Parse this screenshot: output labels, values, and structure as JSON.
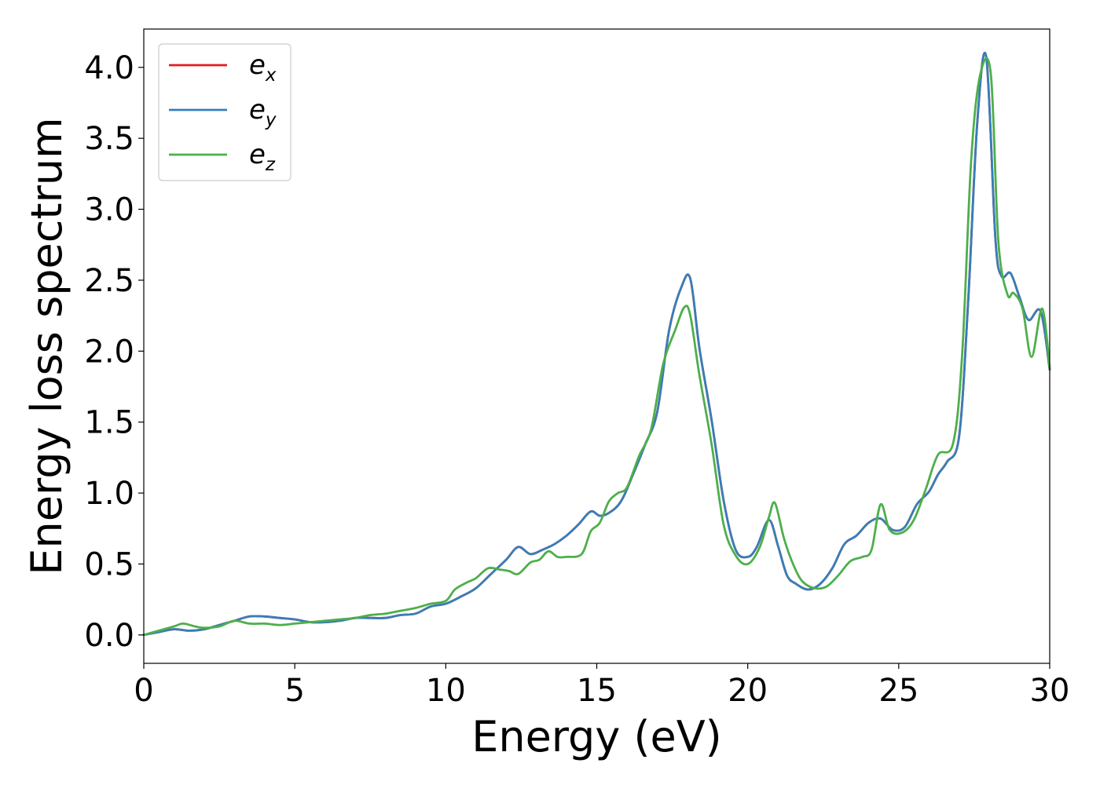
{
  "chart_data": {
    "type": "line",
    "xlabel": "Energy (eV)",
    "ylabel": "Energy loss spectrum",
    "xlim": [
      0,
      30
    ],
    "ylim": [
      -0.2,
      4.27
    ],
    "xticks": [
      0,
      5,
      10,
      15,
      20,
      25,
      30
    ],
    "yticks": [
      0.0,
      0.5,
      1.0,
      1.5,
      2.0,
      2.5,
      3.0,
      3.5,
      4.0
    ],
    "xtick_labels": [
      "0",
      "5",
      "10",
      "15",
      "20",
      "25",
      "30"
    ],
    "ytick_labels": [
      "0.0",
      "0.5",
      "1.0",
      "1.5",
      "2.0",
      "2.5",
      "3.0",
      "3.5",
      "4.0"
    ],
    "grid": false,
    "legend_position": "top-left",
    "series": [
      {
        "name": "e_x",
        "legend_base": "e",
        "legend_sub": "x",
        "color": "#e41a1c",
        "x": [
          0,
          0.5,
          1,
          1.5,
          2,
          2.5,
          3,
          3.5,
          4,
          4.5,
          5,
          5.5,
          6,
          6.5,
          7,
          7.5,
          8,
          8.5,
          9,
          9.5,
          10,
          10.5,
          11,
          11.5,
          12,
          12.4,
          12.8,
          13.2,
          13.6,
          14,
          14.4,
          14.8,
          15.1,
          15.4,
          15.8,
          16.2,
          16.6,
          17,
          17.4,
          17.8,
          18.1,
          18.4,
          18.8,
          19.2,
          19.6,
          20,
          20.3,
          20.7,
          21,
          21.3,
          21.6,
          22,
          22.4,
          22.8,
          23.2,
          23.6,
          24,
          24.4,
          24.8,
          25.2,
          25.6,
          26,
          26.3,
          26.6,
          27,
          27.3,
          27.6,
          27.9,
          28.2,
          28.4,
          28.7,
          29,
          29.3,
          29.7,
          30
        ],
        "y": [
          0.0,
          0.02,
          0.04,
          0.03,
          0.04,
          0.07,
          0.1,
          0.13,
          0.13,
          0.12,
          0.11,
          0.09,
          0.09,
          0.1,
          0.12,
          0.12,
          0.12,
          0.14,
          0.15,
          0.2,
          0.22,
          0.27,
          0.33,
          0.43,
          0.53,
          0.62,
          0.57,
          0.6,
          0.64,
          0.7,
          0.78,
          0.87,
          0.84,
          0.86,
          0.94,
          1.13,
          1.34,
          1.57,
          2.15,
          2.45,
          2.51,
          2.02,
          1.52,
          0.95,
          0.6,
          0.55,
          0.62,
          0.81,
          0.63,
          0.42,
          0.36,
          0.32,
          0.36,
          0.47,
          0.64,
          0.7,
          0.79,
          0.82,
          0.74,
          0.76,
          0.92,
          1.01,
          1.13,
          1.22,
          1.4,
          2.35,
          3.61,
          4.07,
          2.8,
          2.53,
          2.55,
          2.38,
          2.22,
          2.28,
          1.87
        ]
      },
      {
        "name": "e_y",
        "legend_base": "e",
        "legend_sub": "y",
        "color": "#377eb8",
        "x": [
          0,
          0.5,
          1,
          1.5,
          2,
          2.5,
          3,
          3.5,
          4,
          4.5,
          5,
          5.5,
          6,
          6.5,
          7,
          7.5,
          8,
          8.5,
          9,
          9.5,
          10,
          10.5,
          11,
          11.5,
          12,
          12.4,
          12.8,
          13.2,
          13.6,
          14,
          14.4,
          14.8,
          15.1,
          15.4,
          15.8,
          16.2,
          16.6,
          17,
          17.4,
          17.8,
          18.1,
          18.4,
          18.8,
          19.2,
          19.6,
          20,
          20.3,
          20.7,
          21,
          21.3,
          21.6,
          22,
          22.4,
          22.8,
          23.2,
          23.6,
          24,
          24.4,
          24.8,
          25.2,
          25.6,
          26,
          26.3,
          26.6,
          27,
          27.3,
          27.6,
          27.9,
          28.2,
          28.4,
          28.7,
          29,
          29.3,
          29.7,
          30
        ],
        "y": [
          0.0,
          0.02,
          0.04,
          0.03,
          0.04,
          0.07,
          0.1,
          0.13,
          0.13,
          0.12,
          0.11,
          0.09,
          0.09,
          0.1,
          0.12,
          0.12,
          0.12,
          0.14,
          0.15,
          0.2,
          0.22,
          0.27,
          0.33,
          0.43,
          0.53,
          0.62,
          0.57,
          0.6,
          0.64,
          0.7,
          0.78,
          0.87,
          0.84,
          0.86,
          0.94,
          1.13,
          1.34,
          1.57,
          2.15,
          2.45,
          2.51,
          2.02,
          1.52,
          0.95,
          0.6,
          0.55,
          0.62,
          0.81,
          0.63,
          0.42,
          0.36,
          0.32,
          0.36,
          0.47,
          0.64,
          0.7,
          0.79,
          0.82,
          0.74,
          0.76,
          0.92,
          1.01,
          1.13,
          1.22,
          1.4,
          2.35,
          3.61,
          4.07,
          2.8,
          2.53,
          2.55,
          2.38,
          2.22,
          2.28,
          1.87
        ]
      },
      {
        "name": "e_z",
        "legend_base": "e",
        "legend_sub": "z",
        "color": "#4daf4a",
        "x": [
          0,
          0.5,
          1,
          1.3,
          1.7,
          2,
          2.5,
          3,
          3.5,
          4,
          4.5,
          5,
          5.5,
          6,
          6.5,
          7,
          7.5,
          8,
          8.5,
          9,
          9.5,
          10,
          10.3,
          10.7,
          11,
          11.4,
          11.8,
          12.1,
          12.4,
          12.8,
          13.1,
          13.4,
          13.7,
          14,
          14.5,
          14.8,
          15.1,
          15.4,
          15.7,
          16,
          16.4,
          16.8,
          17.2,
          17.6,
          17.9,
          18.1,
          18.4,
          18.8,
          19.2,
          19.6,
          20,
          20.4,
          20.7,
          20.9,
          21.2,
          21.5,
          21.8,
          22.2,
          22.6,
          23,
          23.4,
          23.8,
          24.1,
          24.4,
          24.7,
          25.1,
          25.5,
          25.9,
          26.3,
          26.8,
          27.1,
          27.4,
          27.7,
          28.05,
          28.3,
          28.6,
          28.8,
          29.1,
          29.4,
          29.75,
          30
        ],
        "y": [
          0.0,
          0.03,
          0.06,
          0.08,
          0.06,
          0.05,
          0.06,
          0.1,
          0.08,
          0.08,
          0.07,
          0.08,
          0.09,
          0.1,
          0.11,
          0.12,
          0.14,
          0.15,
          0.17,
          0.19,
          0.22,
          0.24,
          0.32,
          0.37,
          0.4,
          0.47,
          0.46,
          0.45,
          0.43,
          0.51,
          0.53,
          0.59,
          0.55,
          0.55,
          0.57,
          0.73,
          0.79,
          0.94,
          1.0,
          1.04,
          1.26,
          1.45,
          1.91,
          2.15,
          2.31,
          2.25,
          1.83,
          1.35,
          0.78,
          0.56,
          0.5,
          0.62,
          0.83,
          0.93,
          0.68,
          0.5,
          0.38,
          0.33,
          0.34,
          0.42,
          0.52,
          0.55,
          0.6,
          0.92,
          0.74,
          0.72,
          0.81,
          1.03,
          1.27,
          1.35,
          1.97,
          3.35,
          3.95,
          3.95,
          2.77,
          2.4,
          2.41,
          2.3,
          1.96,
          2.3,
          1.88
        ]
      }
    ]
  }
}
